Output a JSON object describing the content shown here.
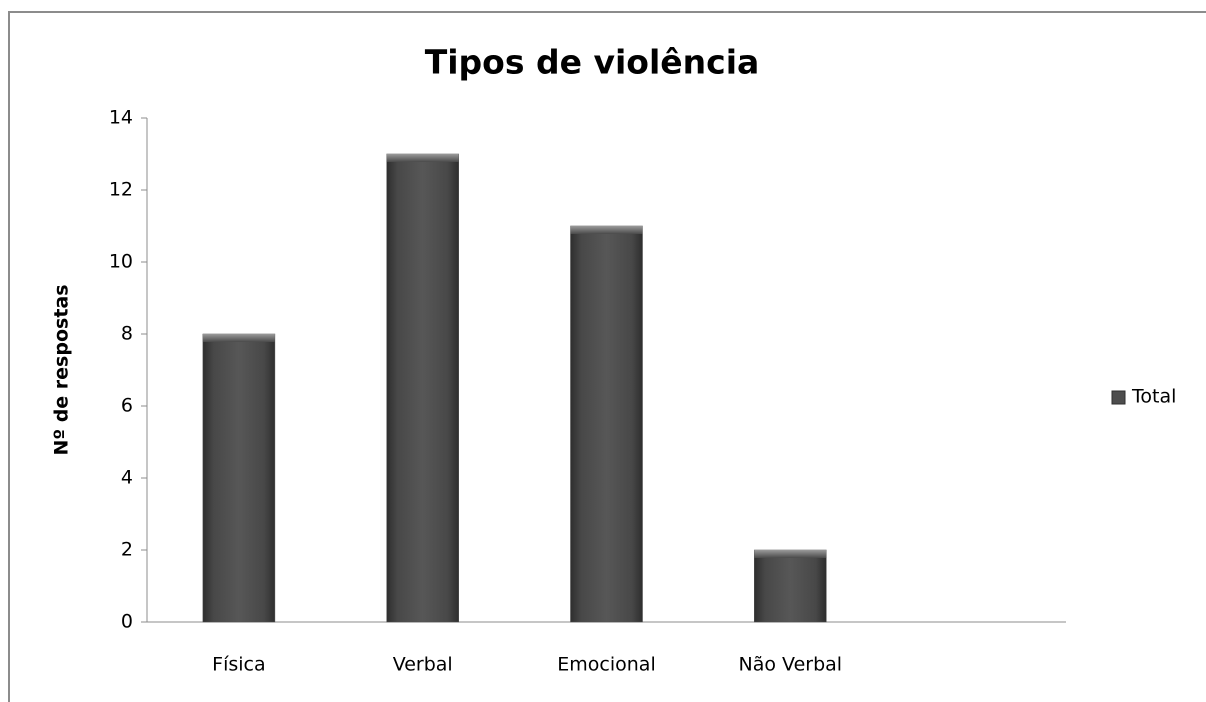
{
  "chart_data": {
    "type": "bar",
    "title": "Tipos de violência",
    "y_label": "Nº de respostas",
    "categories": [
      "Física",
      "Verbal",
      "Emocional",
      "Não Verbal",
      null
    ],
    "series": [
      {
        "name": "Total",
        "color": "#4d4d4d",
        "values": [
          8,
          13,
          11,
          2,
          null
        ]
      }
    ],
    "ylim": [
      0,
      14
    ],
    "yticks": [
      0,
      2,
      4,
      6,
      8,
      10,
      12,
      14
    ],
    "grid": false,
    "legend": "right"
  }
}
